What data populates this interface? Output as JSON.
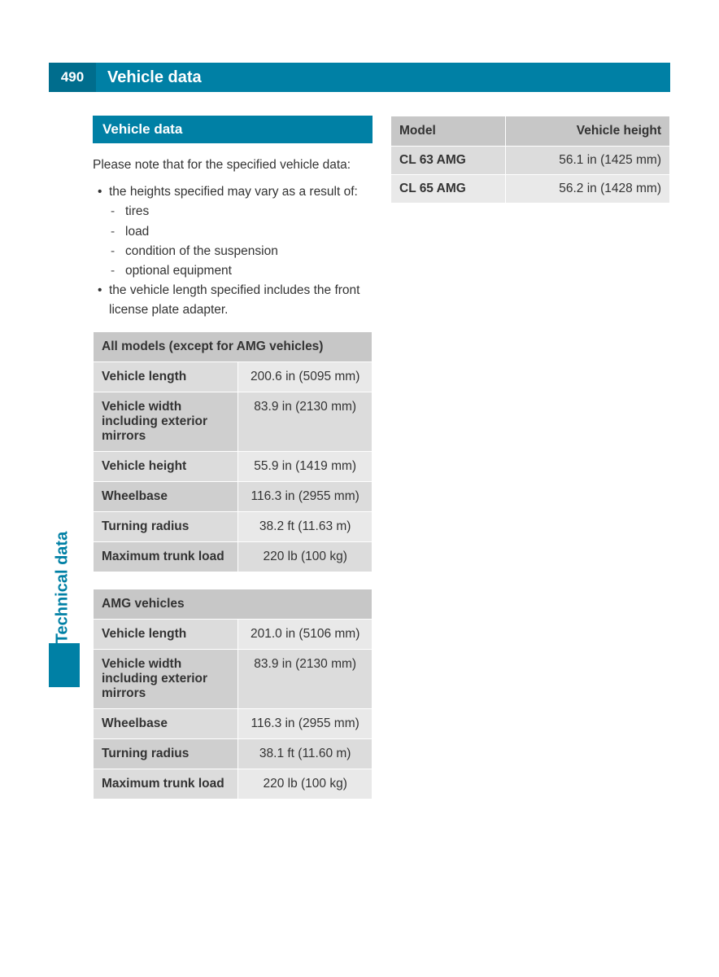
{
  "header": {
    "page_number": "490",
    "title": "Vehicle data"
  },
  "side_tab": "Technical data",
  "section_heading": "Vehicle data",
  "intro": "Please note that for the specified vehicle data:",
  "bullets": [
    {
      "text": "the heights specified may vary as a result of:",
      "subs": [
        "tires",
        "load",
        "condition of the suspension",
        "optional equipment"
      ]
    },
    {
      "text": "the vehicle length specified includes the front license plate adapter.",
      "subs": []
    }
  ],
  "table_all_models": {
    "header": "All models (except for AMG vehicles)",
    "rows": [
      {
        "label": "Vehicle length",
        "value": "200.6 in (5095 mm)"
      },
      {
        "label": "Vehicle width including exterior mirrors",
        "value": "83.9 in (2130 mm)"
      },
      {
        "label": "Vehicle height",
        "value": "55.9 in (1419 mm)"
      },
      {
        "label": "Wheelbase",
        "value": "116.3 in (2955 mm)"
      },
      {
        "label": "Turning radius",
        "value": "38.2 ft (11.63 m)"
      },
      {
        "label": "Maximum trunk load",
        "value": "220 lb (100 kg)"
      }
    ]
  },
  "table_amg": {
    "header": "AMG vehicles",
    "rows": [
      {
        "label": "Vehicle length",
        "value": "201.0 in (5106 mm)"
      },
      {
        "label": "Vehicle width including exterior mirrors",
        "value": "83.9 in (2130 mm)"
      },
      {
        "label": "Wheelbase",
        "value": "116.3 in (2955 mm)"
      },
      {
        "label": "Turning radius",
        "value": "38.1 ft (11.60 m)"
      },
      {
        "label": "Maximum trunk load",
        "value": "220 lb (100 kg)"
      }
    ]
  },
  "table_heights": {
    "col1": "Model",
    "col2": "Vehicle height",
    "rows": [
      {
        "model": "CL 63 AMG",
        "value": "56.1 in (1425 mm)"
      },
      {
        "model": "CL 65 AMG",
        "value": "56.2 in (1428 mm)"
      }
    ]
  },
  "colors": {
    "accent": "#0080a5",
    "accent_dark": "#006d8d",
    "header_gray": "#c7c7c7",
    "row_light": "#e9e9e9",
    "row_mid": "#dcdcdc",
    "row_dark": "#cfcfcf"
  }
}
